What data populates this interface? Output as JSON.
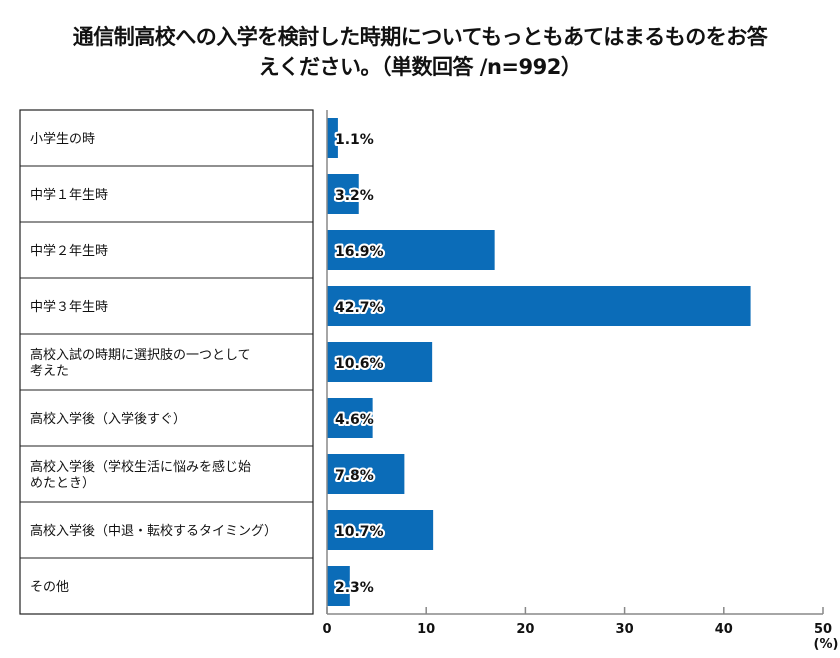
{
  "chart_data": {
    "type": "bar",
    "orientation": "horizontal",
    "title": "通信制高校への入学を検討した時期についてもっともあてはまるものをお答えください。（単数回答 /n=992）",
    "title_lines": [
      "通信制高校への入学を検討した時期についてもっともあてはまるものをお答",
      "えください。（単数回答 /n=992）"
    ],
    "categories": [
      [
        "小学生の時"
      ],
      [
        "中学１年生時"
      ],
      [
        "中学２年生時"
      ],
      [
        "中学３年生時"
      ],
      [
        "高校入試の時期に選択肢の一つとして",
        "考えた"
      ],
      [
        "高校入学後（入学後すぐ）"
      ],
      [
        "高校入学後（学校生活に悩みを感じ始",
        "めたとき）"
      ],
      [
        "高校入学後（中退・転校するタイミング）"
      ],
      [
        "その他"
      ]
    ],
    "values": [
      1.1,
      3.2,
      16.9,
      42.7,
      10.6,
      4.6,
      7.8,
      10.7,
      2.3
    ],
    "value_labels": [
      "1.1%",
      "3.2%",
      "16.9%",
      "42.7%",
      "10.6%",
      "4.6%",
      "7.8%",
      "10.7%",
      "2.3%"
    ],
    "xlim": [
      0,
      50
    ],
    "xticks": [
      "0",
      "10",
      "20",
      "30",
      "40",
      "50"
    ],
    "xunit": "(%)",
    "grid": false,
    "bar_color": "#0b6cb8"
  }
}
